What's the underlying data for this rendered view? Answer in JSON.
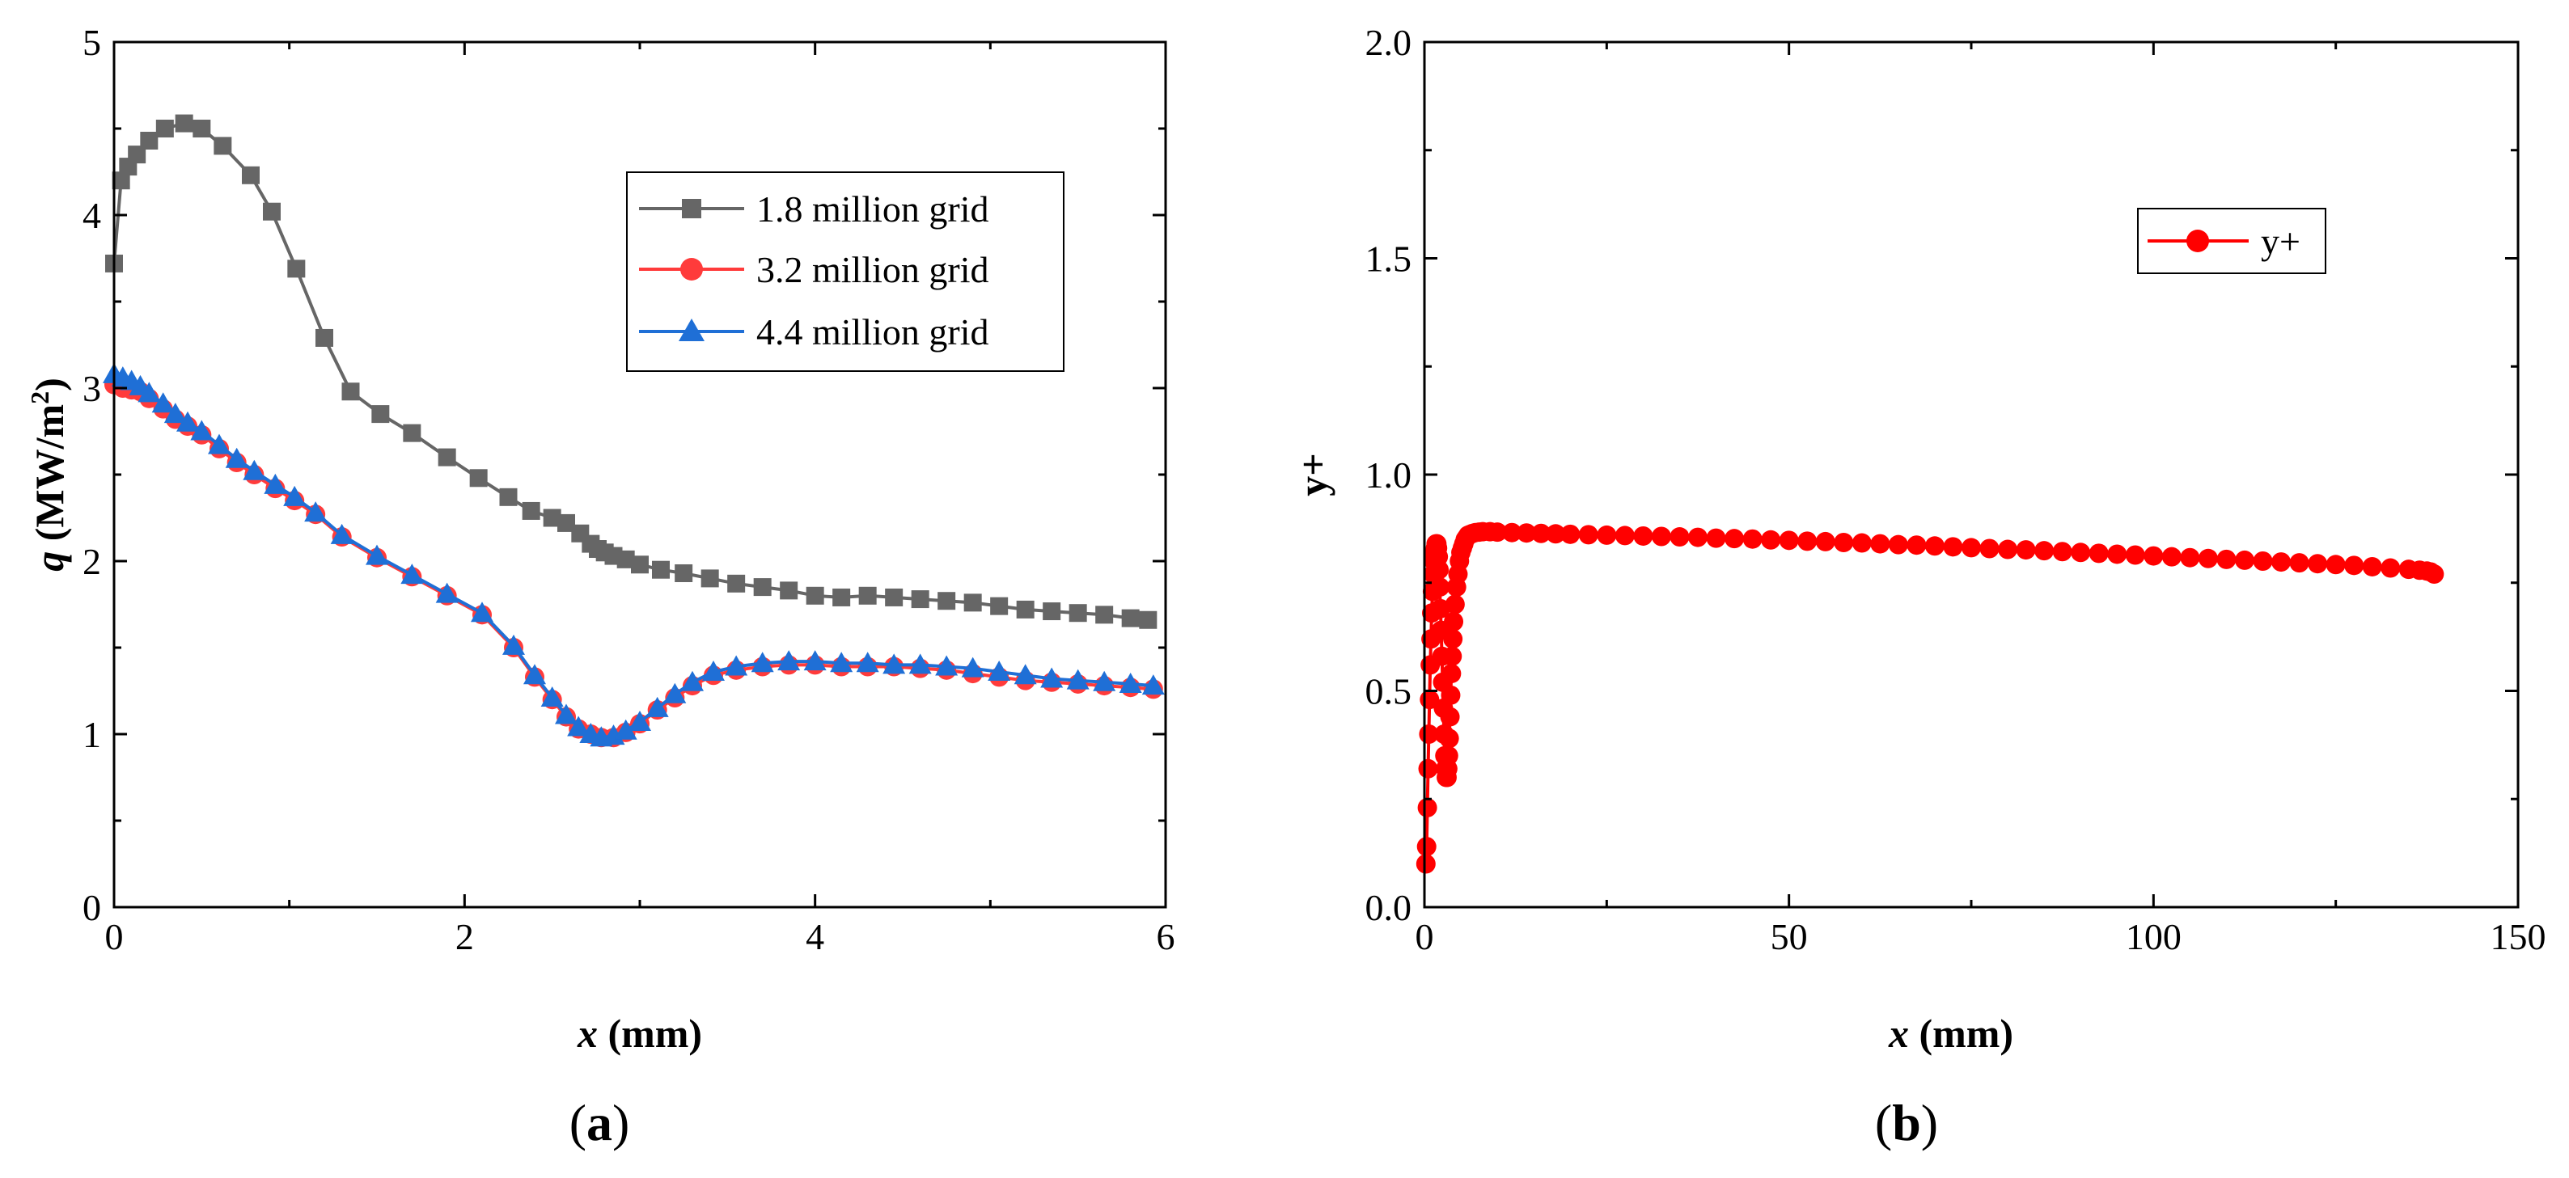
{
  "chart_data": [
    {
      "id": "a",
      "type": "line",
      "panel_label": "(a)",
      "panel_label_letter": "a",
      "xlabel_var": "x",
      "xlabel_unit": " (mm)",
      "ylabel_var": "q",
      "ylabel_unit": " (MW/m",
      "ylabel_sup": "2",
      "ylabel_close": ")",
      "xlim": [
        0,
        6
      ],
      "ylim": [
        0,
        5
      ],
      "xticks": [
        0,
        2,
        4,
        6
      ],
      "xtick_labels": [
        "0",
        "2",
        "4",
        "6"
      ],
      "yticks": [
        0,
        1,
        2,
        3,
        4,
        5
      ],
      "ytick_labels": [
        "0",
        "1",
        "2",
        "3",
        "4",
        "5"
      ],
      "legend_position": "top-right",
      "series": [
        {
          "name": "1.8 million grid",
          "color": "#666666",
          "marker": "square",
          "x": [
            0.0,
            0.04,
            0.08,
            0.13,
            0.2,
            0.29,
            0.4,
            0.5,
            0.62,
            0.78,
            0.9,
            1.04,
            1.2,
            1.35,
            1.52,
            1.7,
            1.9,
            2.08,
            2.25,
            2.38,
            2.5,
            2.58,
            2.66,
            2.72,
            2.76,
            2.8,
            2.85,
            2.92,
            3.0,
            3.12,
            3.25,
            3.4,
            3.55,
            3.7,
            3.85,
            4.0,
            4.15,
            4.3,
            4.45,
            4.6,
            4.75,
            4.9,
            5.05,
            5.2,
            5.35,
            5.5,
            5.65,
            5.8,
            5.9
          ],
          "y": [
            3.72,
            4.2,
            4.28,
            4.35,
            4.43,
            4.5,
            4.53,
            4.5,
            4.4,
            4.23,
            4.02,
            3.69,
            3.29,
            2.98,
            2.85,
            2.74,
            2.6,
            2.48,
            2.37,
            2.29,
            2.25,
            2.22,
            2.16,
            2.1,
            2.07,
            2.05,
            2.03,
            2.01,
            1.98,
            1.95,
            1.93,
            1.9,
            1.87,
            1.85,
            1.83,
            1.8,
            1.79,
            1.8,
            1.79,
            1.78,
            1.77,
            1.76,
            1.74,
            1.72,
            1.71,
            1.7,
            1.69,
            1.67,
            1.66
          ]
        },
        {
          "name": "3.2 million grid",
          "color": "#ff3b3b",
          "marker": "circle",
          "x": [
            0.0,
            0.05,
            0.1,
            0.15,
            0.2,
            0.28,
            0.35,
            0.42,
            0.5,
            0.6,
            0.7,
            0.8,
            0.92,
            1.03,
            1.15,
            1.3,
            1.5,
            1.7,
            1.9,
            2.1,
            2.28,
            2.4,
            2.5,
            2.58,
            2.65,
            2.72,
            2.78,
            2.85,
            2.92,
            3.0,
            3.1,
            3.2,
            3.3,
            3.42,
            3.55,
            3.7,
            3.85,
            4.0,
            4.15,
            4.3,
            4.45,
            4.6,
            4.75,
            4.9,
            5.05,
            5.2,
            5.35,
            5.5,
            5.65,
            5.8,
            5.93
          ],
          "y": [
            3.02,
            3.0,
            2.99,
            2.98,
            2.94,
            2.88,
            2.82,
            2.78,
            2.73,
            2.65,
            2.57,
            2.5,
            2.42,
            2.35,
            2.27,
            2.14,
            2.02,
            1.91,
            1.8,
            1.69,
            1.5,
            1.33,
            1.2,
            1.1,
            1.03,
            1.0,
            0.98,
            0.98,
            1.01,
            1.06,
            1.14,
            1.21,
            1.28,
            1.34,
            1.37,
            1.39,
            1.4,
            1.4,
            1.39,
            1.39,
            1.39,
            1.38,
            1.37,
            1.35,
            1.33,
            1.31,
            1.3,
            1.29,
            1.28,
            1.27,
            1.26
          ]
        },
        {
          "name": "4.4 million grid",
          "color": "#1f6fd6",
          "marker": "triangle",
          "x": [
            0.0,
            0.05,
            0.1,
            0.15,
            0.2,
            0.28,
            0.35,
            0.42,
            0.5,
            0.6,
            0.7,
            0.8,
            0.92,
            1.03,
            1.15,
            1.3,
            1.5,
            1.7,
            1.9,
            2.1,
            2.28,
            2.4,
            2.5,
            2.58,
            2.65,
            2.72,
            2.78,
            2.85,
            2.92,
            3.0,
            3.1,
            3.2,
            3.3,
            3.42,
            3.55,
            3.7,
            3.85,
            4.0,
            4.15,
            4.3,
            4.45,
            4.6,
            4.75,
            4.9,
            5.05,
            5.2,
            5.35,
            5.5,
            5.65,
            5.8,
            5.93
          ],
          "y": [
            3.08,
            3.06,
            3.04,
            3.01,
            2.97,
            2.91,
            2.85,
            2.8,
            2.75,
            2.67,
            2.59,
            2.52,
            2.44,
            2.37,
            2.28,
            2.15,
            2.03,
            1.92,
            1.81,
            1.7,
            1.51,
            1.34,
            1.21,
            1.11,
            1.04,
            1.0,
            0.98,
            0.99,
            1.02,
            1.07,
            1.15,
            1.23,
            1.3,
            1.36,
            1.39,
            1.41,
            1.42,
            1.42,
            1.41,
            1.41,
            1.4,
            1.4,
            1.39,
            1.38,
            1.36,
            1.34,
            1.32,
            1.31,
            1.3,
            1.29,
            1.28
          ]
        }
      ]
    },
    {
      "id": "b",
      "type": "scatter",
      "panel_label": "(b)",
      "panel_label_letter": "b",
      "xlabel_var": "x",
      "xlabel_unit": " (mm)",
      "ylabel": "y+",
      "xlim": [
        0,
        150
      ],
      "ylim": [
        0.0,
        2.0
      ],
      "xticks": [
        0,
        50,
        100,
        150
      ],
      "xtick_labels": [
        "0",
        "50",
        "100",
        "150"
      ],
      "yticks": [
        0.0,
        0.5,
        1.0,
        1.5,
        2.0
      ],
      "ytick_labels": [
        "0.0",
        "0.5",
        "1.0",
        "1.5",
        "2.0"
      ],
      "legend_position": "top-right",
      "series": [
        {
          "name": "y+",
          "color": "#ff0000",
          "marker": "circle",
          "x": [
            0.2,
            0.3,
            0.4,
            0.5,
            0.6,
            0.7,
            0.8,
            0.9,
            1.0,
            1.1,
            1.2,
            1.3,
            1.4,
            1.5,
            1.6,
            1.7,
            1.8,
            1.9,
            2.0,
            2.1,
            2.2,
            2.3,
            2.4,
            2.5,
            2.6,
            2.7,
            2.8,
            2.9,
            3.0,
            3.1,
            3.2,
            3.3,
            3.4,
            3.5,
            3.6,
            3.7,
            3.8,
            3.9,
            4.0,
            4.2,
            4.4,
            4.6,
            4.8,
            5.0,
            5.2,
            5.4,
            5.6,
            5.8,
            6.0,
            6.3,
            6.6,
            7.0,
            7.5,
            8.0,
            9.0,
            10.0,
            12.0,
            14.0,
            16.0,
            18.0,
            20.0,
            22.5,
            25.0,
            27.5,
            30.0,
            32.5,
            35.0,
            37.5,
            40.0,
            42.5,
            45.0,
            47.5,
            50.0,
            52.5,
            55.0,
            57.5,
            60.0,
            62.5,
            65.0,
            67.5,
            70.0,
            72.5,
            75.0,
            77.5,
            80.0,
            82.5,
            85.0,
            87.5,
            90.0,
            92.5,
            95.0,
            97.5,
            100.0,
            102.5,
            105.0,
            107.5,
            110.0,
            112.5,
            115.0,
            117.5,
            120.0,
            122.5,
            125.0,
            127.5,
            130.0,
            132.5,
            135.0,
            136.5,
            137.5,
            138.0,
            138.5
          ],
          "y": [
            0.1,
            0.14,
            0.23,
            0.32,
            0.4,
            0.48,
            0.56,
            0.62,
            0.68,
            0.73,
            0.77,
            0.8,
            0.82,
            0.83,
            0.84,
            0.84,
            0.83,
            0.81,
            0.78,
            0.74,
            0.69,
            0.64,
            0.58,
            0.52,
            0.46,
            0.4,
            0.35,
            0.32,
            0.3,
            0.3,
            0.32,
            0.35,
            0.39,
            0.44,
            0.49,
            0.54,
            0.58,
            0.62,
            0.66,
            0.7,
            0.74,
            0.77,
            0.8,
            0.82,
            0.83,
            0.84,
            0.85,
            0.855,
            0.86,
            0.862,
            0.864,
            0.866,
            0.867,
            0.868,
            0.868,
            0.867,
            0.866,
            0.865,
            0.864,
            0.863,
            0.862,
            0.861,
            0.86,
            0.859,
            0.858,
            0.857,
            0.856,
            0.855,
            0.853,
            0.852,
            0.851,
            0.849,
            0.848,
            0.846,
            0.845,
            0.843,
            0.842,
            0.84,
            0.838,
            0.837,
            0.835,
            0.833,
            0.831,
            0.829,
            0.827,
            0.826,
            0.824,
            0.822,
            0.82,
            0.818,
            0.816,
            0.814,
            0.812,
            0.81,
            0.808,
            0.806,
            0.804,
            0.802,
            0.8,
            0.798,
            0.796,
            0.794,
            0.792,
            0.79,
            0.787,
            0.784,
            0.781,
            0.779,
            0.777,
            0.775,
            0.77
          ]
        }
      ]
    }
  ]
}
